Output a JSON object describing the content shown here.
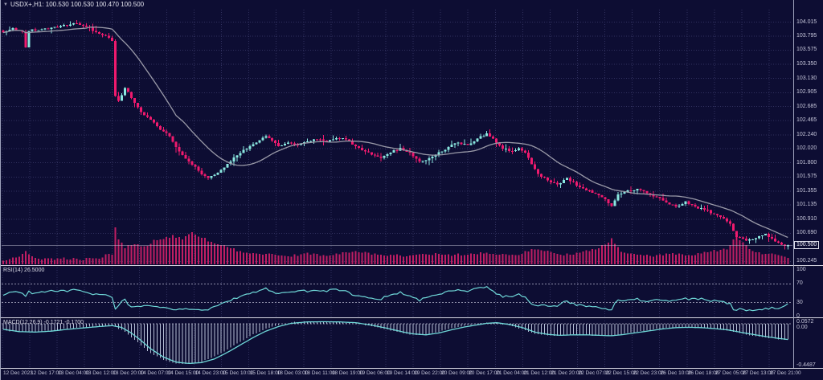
{
  "window": {
    "collapse_icon": "▼",
    "title": "USDX+,H1: 100.530 100.530 100.470 100.500"
  },
  "colors": {
    "background": "#0d0d33",
    "grid": "#31315f",
    "bull": "#8ae8e0",
    "bear": "#f01a6e",
    "ma_line": "#9a9aa8",
    "volume": "#c01e63",
    "rsi_line": "#6fd8d8",
    "macd_signal": "#6fd8d8",
    "macd_histogram": "#b6bfd6",
    "axis_text": "#c6c6da",
    "separator": "#cfcfdd",
    "price_line": "#c4c4d4",
    "level_line": "#8e8ea8"
  },
  "chart_data": {
    "type": "candlestick",
    "symbol": "USDX+",
    "timeframe": "H1",
    "current_ohlc": {
      "open": 100.53,
      "high": 100.53,
      "low": 100.47,
      "close": 100.5
    },
    "current_price_label": "100.500",
    "price_axis_range": [
      100.2,
      104.21
    ],
    "price_ticks": [
      "104.015",
      "103.795",
      "103.575",
      "103.350",
      "103.130",
      "102.905",
      "102.685",
      "102.465",
      "102.240",
      "102.020",
      "101.800",
      "101.575",
      "101.355",
      "101.135",
      "100.910",
      "100.690",
      "100.245"
    ],
    "time_ticks": [
      "12 Dec 2023",
      "12 Dec 17:00",
      "13 Dec 04:00",
      "13 Dec 12:00",
      "13 Dec 20:00",
      "14 Dec 07:00",
      "14 Dec 15:00",
      "14 Dec 23:00",
      "15 Dec 10:00",
      "15 Dec 18:00",
      "18 Dec 03:00",
      "18 Dec 11:00",
      "18 Dec 19:00",
      "19 Dec 06:00",
      "19 Dec 14:00",
      "19 Dec 22:00",
      "20 Dec 09:00",
      "20 Dec 17:00",
      "21 Dec 04:00",
      "21 Dec 12:00",
      "21 Dec 20:00",
      "22 Dec 07:00",
      "22 Dec 15:00",
      "22 Dec 23:00",
      "26 Dec 10:00",
      "26 Dec 18:00",
      "27 Dec 05:00",
      "27 Dec 13:00",
      "27 Dec 21:00"
    ],
    "ma_period": 20,
    "candles": {
      "count": 246,
      "close_anchors": [
        [
          0,
          103.85
        ],
        [
          3,
          103.92
        ],
        [
          6,
          103.86
        ],
        [
          7,
          103.62
        ],
        [
          8,
          103.88
        ],
        [
          12,
          103.9
        ],
        [
          16,
          103.94
        ],
        [
          20,
          103.96
        ],
        [
          23,
          104.0
        ],
        [
          26,
          103.94
        ],
        [
          29,
          103.86
        ],
        [
          32,
          103.8
        ],
        [
          34,
          103.72
        ],
        [
          35,
          102.85
        ],
        [
          36,
          102.78
        ],
        [
          38,
          102.98
        ],
        [
          40,
          102.82
        ],
        [
          43,
          102.6
        ],
        [
          46,
          102.48
        ],
        [
          49,
          102.32
        ],
        [
          52,
          102.22
        ],
        [
          54,
          102.05
        ],
        [
          56,
          101.92
        ],
        [
          58,
          101.82
        ],
        [
          60,
          101.74
        ],
        [
          62,
          101.62
        ],
        [
          64,
          101.56
        ],
        [
          67,
          101.64
        ],
        [
          70,
          101.78
        ],
        [
          73,
          101.92
        ],
        [
          76,
          102.02
        ],
        [
          79,
          102.12
        ],
        [
          82,
          102.22
        ],
        [
          84,
          102.15
        ],
        [
          86,
          102.06
        ],
        [
          89,
          102.12
        ],
        [
          92,
          102.08
        ],
        [
          95,
          102.14
        ],
        [
          98,
          102.17
        ],
        [
          101,
          102.14
        ],
        [
          104,
          102.19
        ],
        [
          107,
          102.17
        ],
        [
          110,
          102.06
        ],
        [
          113,
          101.98
        ],
        [
          116,
          101.92
        ],
        [
          118,
          101.88
        ],
        [
          121,
          101.96
        ],
        [
          124,
          102.03
        ],
        [
          127,
          101.96
        ],
        [
          130,
          101.82
        ],
        [
          133,
          101.87
        ],
        [
          136,
          101.96
        ],
        [
          139,
          102.05
        ],
        [
          142,
          102.12
        ],
        [
          145,
          102.08
        ],
        [
          148,
          102.18
        ],
        [
          151,
          102.26
        ],
        [
          153,
          102.18
        ],
        [
          156,
          102.02
        ],
        [
          159,
          101.98
        ],
        [
          161,
          102.03
        ],
        [
          163,
          101.96
        ],
        [
          165,
          101.78
        ],
        [
          167,
          101.62
        ],
        [
          170,
          101.52
        ],
        [
          173,
          101.46
        ],
        [
          176,
          101.56
        ],
        [
          179,
          101.44
        ],
        [
          182,
          101.37
        ],
        [
          185,
          101.31
        ],
        [
          188,
          101.22
        ],
        [
          190,
          101.12
        ],
        [
          192,
          101.3
        ],
        [
          195,
          101.36
        ],
        [
          198,
          101.39
        ],
        [
          201,
          101.32
        ],
        [
          204,
          101.26
        ],
        [
          207,
          101.17
        ],
        [
          210,
          101.11
        ],
        [
          213,
          101.19
        ],
        [
          216,
          101.11
        ],
        [
          219,
          101.06
        ],
        [
          222,
          100.99
        ],
        [
          225,
          100.92
        ],
        [
          227,
          100.84
        ],
        [
          229,
          100.63
        ],
        [
          232,
          100.57
        ],
        [
          235,
          100.61
        ],
        [
          238,
          100.68
        ],
        [
          241,
          100.56
        ],
        [
          244,
          100.49
        ],
        [
          245,
          100.5
        ]
      ],
      "volume_anchors": [
        [
          0,
          4
        ],
        [
          5,
          8
        ],
        [
          7,
          14
        ],
        [
          10,
          5
        ],
        [
          15,
          5
        ],
        [
          20,
          6
        ],
        [
          25,
          5
        ],
        [
          30,
          7
        ],
        [
          34,
          12
        ],
        [
          35,
          45
        ],
        [
          36,
          28
        ],
        [
          38,
          20
        ],
        [
          41,
          24
        ],
        [
          44,
          20
        ],
        [
          47,
          28
        ],
        [
          50,
          30
        ],
        [
          53,
          34
        ],
        [
          56,
          30
        ],
        [
          59,
          38
        ],
        [
          62,
          32
        ],
        [
          65,
          26
        ],
        [
          68,
          22
        ],
        [
          71,
          18
        ],
        [
          74,
          15
        ],
        [
          78,
          12
        ],
        [
          82,
          11
        ],
        [
          86,
          9
        ],
        [
          90,
          9
        ],
        [
          95,
          12
        ],
        [
          100,
          10
        ],
        [
          105,
          12
        ],
        [
          110,
          15
        ],
        [
          115,
          12
        ],
        [
          120,
          10
        ],
        [
          126,
          9
        ],
        [
          132,
          12
        ],
        [
          138,
          10
        ],
        [
          144,
          11
        ],
        [
          150,
          13
        ],
        [
          155,
          11
        ],
        [
          160,
          10
        ],
        [
          165,
          17
        ],
        [
          170,
          14
        ],
        [
          175,
          11
        ],
        [
          180,
          13
        ],
        [
          185,
          18
        ],
        [
          188,
          24
        ],
        [
          190,
          30
        ],
        [
          193,
          15
        ],
        [
          198,
          10
        ],
        [
          203,
          9
        ],
        [
          208,
          12
        ],
        [
          213,
          10
        ],
        [
          218,
          12
        ],
        [
          222,
          15
        ],
        [
          226,
          18
        ],
        [
          229,
          33
        ],
        [
          231,
          25
        ],
        [
          234,
          15
        ],
        [
          238,
          10
        ],
        [
          241,
          12
        ],
        [
          245,
          7
        ]
      ]
    },
    "rsi": {
      "label": "RSI(14) 26.5000",
      "period": 14,
      "value": 26.5,
      "levels": [
        70,
        30
      ],
      "ticks": [
        "100",
        "70",
        "30",
        "0"
      ],
      "anchors": [
        [
          0,
          46
        ],
        [
          4,
          55
        ],
        [
          8,
          48
        ],
        [
          12,
          52
        ],
        [
          16,
          55
        ],
        [
          20,
          54
        ],
        [
          23,
          58
        ],
        [
          26,
          52
        ],
        [
          30,
          48
        ],
        [
          34,
          45
        ],
        [
          35,
          24
        ],
        [
          38,
          31
        ],
        [
          40,
          27
        ],
        [
          44,
          25
        ],
        [
          48,
          23
        ],
        [
          52,
          21
        ],
        [
          56,
          19
        ],
        [
          60,
          18
        ],
        [
          64,
          17
        ],
        [
          68,
          25
        ],
        [
          72,
          35
        ],
        [
          76,
          46
        ],
        [
          80,
          53
        ],
        [
          82,
          59
        ],
        [
          85,
          53
        ],
        [
          88,
          51
        ],
        [
          92,
          56
        ],
        [
          95,
          53
        ],
        [
          98,
          57
        ],
        [
          101,
          55
        ],
        [
          104,
          58
        ],
        [
          107,
          56
        ],
        [
          110,
          47
        ],
        [
          113,
          43
        ],
        [
          116,
          39
        ],
        [
          118,
          37
        ],
        [
          121,
          46
        ],
        [
          124,
          51
        ],
        [
          127,
          46
        ],
        [
          130,
          37
        ],
        [
          133,
          41
        ],
        [
          136,
          47
        ],
        [
          139,
          53
        ],
        [
          142,
          57
        ],
        [
          145,
          53
        ],
        [
          148,
          59
        ],
        [
          151,
          63
        ],
        [
          153,
          57
        ],
        [
          156,
          45
        ],
        [
          159,
          43
        ],
        [
          161,
          47
        ],
        [
          163,
          43
        ],
        [
          165,
          33
        ],
        [
          167,
          27
        ],
        [
          170,
          24
        ],
        [
          173,
          22
        ],
        [
          176,
          32
        ],
        [
          179,
          27
        ],
        [
          182,
          24
        ],
        [
          185,
          22
        ],
        [
          188,
          19
        ],
        [
          190,
          17
        ],
        [
          192,
          30
        ],
        [
          195,
          34
        ],
        [
          198,
          37
        ],
        [
          201,
          32
        ],
        [
          204,
          38
        ],
        [
          208,
          35
        ],
        [
          212,
          36
        ],
        [
          216,
          40
        ],
        [
          220,
          36
        ],
        [
          224,
          33
        ],
        [
          227,
          30
        ],
        [
          228,
          21
        ],
        [
          231,
          15
        ],
        [
          234,
          11
        ],
        [
          237,
          15
        ],
        [
          240,
          22
        ],
        [
          242,
          18
        ],
        [
          245,
          26.5
        ]
      ]
    },
    "macd": {
      "label": "MACD(12,26,9) -0.1721 -0.1700",
      "fast": 12,
      "slow": 26,
      "signal": 9,
      "macd_value": -0.1721,
      "signal_value": -0.17,
      "ticks": [
        "0.0572",
        "0.00",
        "-0.4487"
      ],
      "signal_anchors": [
        [
          0,
          -0.06
        ],
        [
          5,
          -0.085
        ],
        [
          10,
          -0.09
        ],
        [
          15,
          -0.08
        ],
        [
          20,
          -0.06
        ],
        [
          25,
          -0.045
        ],
        [
          30,
          -0.03
        ],
        [
          34,
          -0.02
        ],
        [
          37,
          -0.04
        ],
        [
          40,
          -0.1
        ],
        [
          43,
          -0.18
        ],
        [
          46,
          -0.27
        ],
        [
          50,
          -0.36
        ],
        [
          54,
          -0.415
        ],
        [
          58,
          -0.43
        ],
        [
          62,
          -0.42
        ],
        [
          66,
          -0.38
        ],
        [
          70,
          -0.31
        ],
        [
          74,
          -0.23
        ],
        [
          78,
          -0.15
        ],
        [
          82,
          -0.08
        ],
        [
          86,
          -0.03
        ],
        [
          90,
          0.005
        ],
        [
          95,
          0.02
        ],
        [
          100,
          0.022
        ],
        [
          105,
          0.02
        ],
        [
          110,
          0.012
        ],
        [
          115,
          -0.015
        ],
        [
          120,
          -0.05
        ],
        [
          125,
          -0.09
        ],
        [
          128,
          -0.11
        ],
        [
          132,
          -0.12
        ],
        [
          136,
          -0.1
        ],
        [
          140,
          -0.065
        ],
        [
          144,
          -0.035
        ],
        [
          148,
          -0.012
        ],
        [
          151,
          0.005
        ],
        [
          154,
          0.012
        ],
        [
          158,
          -0.008
        ],
        [
          162,
          -0.04
        ],
        [
          166,
          -0.09
        ],
        [
          170,
          -0.115
        ],
        [
          174,
          -0.125
        ],
        [
          178,
          -0.12
        ],
        [
          182,
          -0.12
        ],
        [
          186,
          -0.125
        ],
        [
          190,
          -0.13
        ],
        [
          194,
          -0.115
        ],
        [
          198,
          -0.095
        ],
        [
          202,
          -0.075
        ],
        [
          206,
          -0.055
        ],
        [
          210,
          -0.042
        ],
        [
          214,
          -0.038
        ],
        [
          218,
          -0.042
        ],
        [
          222,
          -0.052
        ],
        [
          226,
          -0.065
        ],
        [
          230,
          -0.09
        ],
        [
          234,
          -0.115
        ],
        [
          238,
          -0.138
        ],
        [
          242,
          -0.158
        ],
        [
          245,
          -0.17
        ]
      ]
    }
  }
}
